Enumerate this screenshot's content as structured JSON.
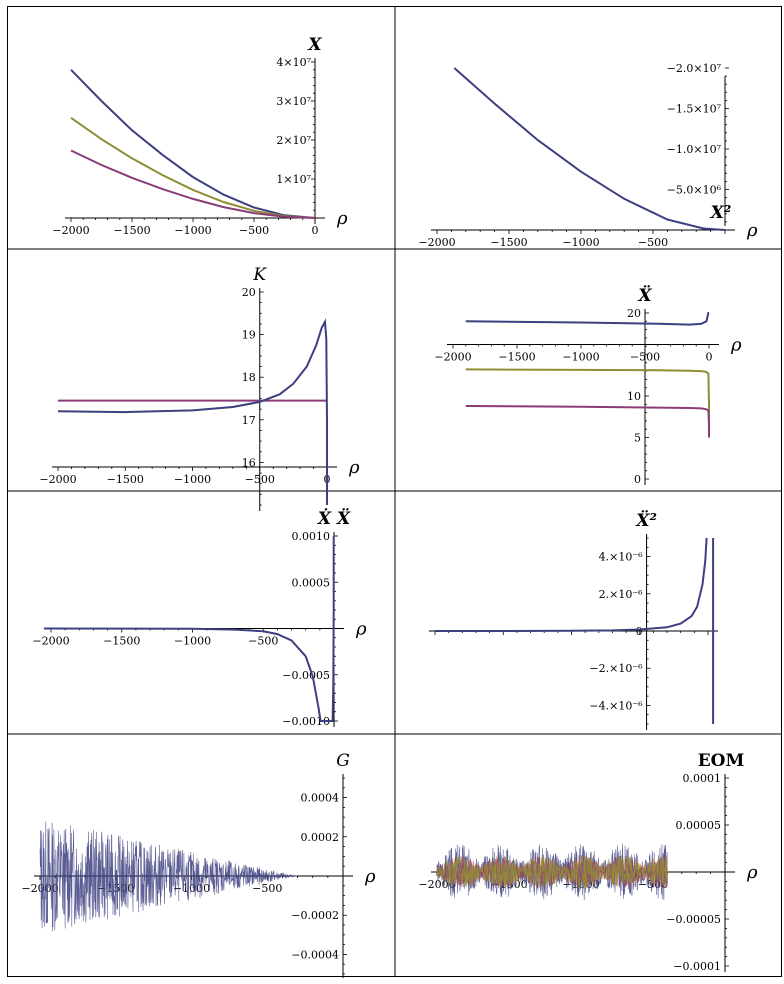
{
  "colors": {
    "blue": "#3d3f80",
    "olive": "#8e8d35",
    "purple": "#8b3c78",
    "orange": "#c77a3a",
    "axis": "#000000"
  },
  "chart_data": [
    {
      "type": "line",
      "title": "X",
      "xlabel": "ρ",
      "xlim": [
        -2000,
        0
      ],
      "ylim": [
        0,
        40000000
      ],
      "xticks": [
        -2000,
        -1500,
        -1000,
        -500,
        0
      ],
      "xtick_labels": [
        "−2000",
        "−1500",
        "−1000",
        "−500",
        "0"
      ],
      "yticks": [
        10000000,
        20000000,
        30000000,
        40000000
      ],
      "ytick_labels": [
        "1×10⁷",
        "2×10⁷",
        "3×10⁷",
        "4×10⁷"
      ],
      "series": [
        {
          "name": "blue",
          "x": [
            -2000,
            -1750,
            -1500,
            -1250,
            -1000,
            -750,
            -500,
            -250,
            0
          ],
          "values": [
            38000000,
            30000000,
            22500000,
            16200000,
            10500000,
            6000000,
            2700000,
            700000,
            0
          ]
        },
        {
          "name": "olive",
          "x": [
            -2000,
            -1750,
            -1500,
            -1250,
            -1000,
            -750,
            -500,
            -250,
            0
          ],
          "values": [
            25700000,
            20200000,
            15300000,
            11000000,
            7200000,
            4100000,
            1850000,
            480000,
            0
          ]
        },
        {
          "name": "purple",
          "x": [
            -2000,
            -1750,
            -1500,
            -1250,
            -1000,
            -750,
            -500,
            -250,
            0
          ],
          "values": [
            17300000,
            13600000,
            10300000,
            7400000,
            4900000,
            2800000,
            1250000,
            320000,
            0
          ]
        }
      ]
    },
    {
      "type": "line",
      "title": "X²",
      "xlabel": "ρ",
      "xlim": [
        -2000,
        0
      ],
      "ylim": [
        -20000000,
        0
      ],
      "xticks": [
        -2000,
        -1500,
        -1000,
        -500
      ],
      "xtick_labels": [
        "−2000",
        "−1500",
        "−1000",
        "−500"
      ],
      "yticks": [
        -5000000,
        -10000000,
        -15000000,
        -20000000
      ],
      "ytick_labels": [
        "−5.0×10⁶",
        "−1.0×10⁷",
        "−1.5×10⁷",
        "−2.0×10⁷"
      ],
      "series": [
        {
          "name": "blue",
          "x": [
            -1880,
            -1600,
            -1300,
            -1000,
            -700,
            -400,
            -150,
            0
          ],
          "values": [
            -20000000,
            -15600000,
            -11100000,
            -7200000,
            -3850000,
            -1300000,
            -190000,
            0
          ]
        }
      ]
    },
    {
      "type": "line",
      "title": "K",
      "xlabel": "ρ",
      "xlim": [
        -2000,
        0
      ],
      "ylim": [
        15,
        20
      ],
      "xticks": [
        -2000,
        -1500,
        -1000,
        -500,
        0
      ],
      "xtick_labels": [
        "−2000",
        "−1500",
        "−1000",
        "−500",
        "0"
      ],
      "yticks": [
        16,
        17,
        18,
        19,
        20
      ],
      "ytick_labels": [
        "16",
        "17",
        "18",
        "19",
        "20"
      ],
      "series": [
        {
          "name": "purple",
          "x": [
            -2000,
            0
          ],
          "values": [
            17.45,
            17.45
          ]
        },
        {
          "name": "blue",
          "x": [
            -2000,
            -1500,
            -1000,
            -700,
            -500,
            -350,
            -250,
            -150,
            -80,
            -40,
            -15,
            -5,
            0,
            0
          ],
          "values": [
            17.2,
            17.18,
            17.22,
            17.3,
            17.42,
            17.6,
            17.85,
            18.25,
            18.75,
            19.15,
            19.3,
            18.9,
            17.0,
            15.0
          ]
        }
      ]
    },
    {
      "type": "line",
      "title": "Ẍ",
      "xlabel": "ρ",
      "xlim": [
        -2000,
        0
      ],
      "ylim": [
        0,
        20
      ],
      "xticks": [
        -2000,
        -1500,
        -1000,
        -500,
        0
      ],
      "xtick_labels": [
        "−2000",
        "−1500",
        "−1000",
        "−500",
        "0"
      ],
      "yticks": [
        0,
        5,
        10,
        20
      ],
      "ytick_labels": [
        "0",
        "5",
        "10",
        "20"
      ],
      "series": [
        {
          "name": "blue",
          "x": [
            -1900,
            -1000,
            -400,
            -150,
            -60,
            -20,
            -5,
            0
          ],
          "values": [
            19.0,
            18.85,
            18.7,
            18.6,
            18.7,
            19.0,
            20.0,
            20.0
          ]
        },
        {
          "name": "olive",
          "x": [
            -1900,
            -1000,
            -400,
            -150,
            -60,
            -20,
            -5,
            0,
            0
          ],
          "values": [
            13.2,
            13.15,
            13.1,
            13.05,
            13.0,
            12.9,
            12.7,
            9.0,
            5.5
          ]
        },
        {
          "name": "purple",
          "x": [
            -1900,
            -1000,
            -400,
            -150,
            -60,
            -20,
            -5,
            0,
            0
          ],
          "values": [
            8.8,
            8.7,
            8.6,
            8.55,
            8.5,
            8.4,
            8.2,
            6.5,
            5.0
          ]
        }
      ]
    },
    {
      "type": "line",
      "title": "Ẋ Ẍ",
      "xlabel": "ρ",
      "xlim": [
        -2000,
        0
      ],
      "ylim": [
        -0.001,
        0.001
      ],
      "xticks": [
        -2000,
        -1500,
        -1000,
        -500
      ],
      "xtick_labels": [
        "−2000",
        "−1500",
        "−1000",
        "−500"
      ],
      "yticks": [
        0.001,
        0.0005,
        -0.0005,
        -0.001
      ],
      "ytick_labels": [
        "0.0010",
        "0.0005",
        "−0.0005",
        "−0.0010"
      ],
      "series": [
        {
          "name": "blue",
          "x": [
            -2050,
            -1000,
            -700,
            -500,
            -400,
            -300,
            -200,
            -150,
            -110,
            -95,
            -70,
            -30,
            -10,
            -5,
            -2,
            -2
          ],
          "values": [
            0,
            -3e-06,
            -1.2e-05,
            -3e-05,
            -6e-05,
            -0.00013,
            -0.0003,
            -0.00052,
            -0.00085,
            -0.001,
            -0.001,
            -0.001,
            -0.001,
            -0.0006,
            0.0002,
            0.001
          ]
        }
      ]
    },
    {
      "type": "line",
      "title": "Ẍ²",
      "xlabel": "",
      "xlim": [
        -2000,
        0
      ],
      "ylim": [
        -5e-06,
        5e-06
      ],
      "xticks": [],
      "xtick_labels": [],
      "yticks": [
        4e-06,
        2e-06,
        0,
        -2e-06,
        -4e-06
      ],
      "ytick_labels": [
        "4.×10⁻⁶",
        "2.×10⁻⁶",
        "0",
        "−2.×10⁻⁶",
        "−4.×10⁻⁶"
      ],
      "series": [
        {
          "name": "blue",
          "x": [
            -2000,
            -1500,
            -1000,
            -700,
            -500,
            -300,
            -200,
            -120,
            -80,
            -40,
            -20,
            -10
          ],
          "values": [
            0,
            0,
            1e-08,
            3e-08,
            8e-08,
            2e-07,
            4e-07,
            8e-07,
            1.3e-06,
            2.5e-06,
            3.8e-06,
            5e-06
          ]
        },
        {
          "name": "blue",
          "x": [
            37,
            37
          ],
          "values": [
            5e-06,
            -5e-06
          ]
        }
      ]
    },
    {
      "type": "line",
      "title": "G",
      "xlabel": "ρ",
      "xlim": [
        -2000,
        0
      ],
      "ylim": [
        -0.0005,
        0.0005
      ],
      "xticks": [
        -2000,
        -1500,
        -1000,
        -500
      ],
      "xtick_labels": [
        "−2000",
        "−1500",
        "−1000",
        "−500"
      ],
      "yticks": [
        0.0004,
        0.0002,
        -0.0002,
        -0.0004
      ],
      "ytick_labels": [
        "0.0004",
        "0.0002",
        "−0.0002",
        "−0.0004"
      ],
      "annotations": [
        "dense noise, amplitude ≈ 0.0003 at ρ = −2000 decaying to ≈ 0 near ρ = −300"
      ],
      "series": [
        {
          "name": "blue-noise",
          "x": [
            -2000,
            -300
          ],
          "values": [
            0.0003,
            0
          ]
        }
      ]
    },
    {
      "type": "line",
      "title": "EOM",
      "xlabel": "ρ",
      "xlim": [
        -2000,
        0
      ],
      "ylim": [
        -0.0001,
        0.0001
      ],
      "xticks": [
        -2000,
        -1500,
        -1000,
        -500
      ],
      "xtick_labels": [
        "−2000",
        "−1500",
        "−1000",
        "−500"
      ],
      "yticks": [
        0.0001,
        5e-05,
        -5e-05,
        -0.0001
      ],
      "ytick_labels": [
        "0.0001",
        "0.00005",
        "−0.00005",
        "−0.0001"
      ],
      "annotations": [
        "noisy multi-colour residual, amplitude up to ≈ 0.00003 between ρ = −2000 and ρ = −400"
      ],
      "series": [
        {
          "name": "mixed-noise",
          "x": [
            -2000,
            -400
          ],
          "values": [
            3e-05,
            2e-05
          ]
        }
      ]
    }
  ]
}
